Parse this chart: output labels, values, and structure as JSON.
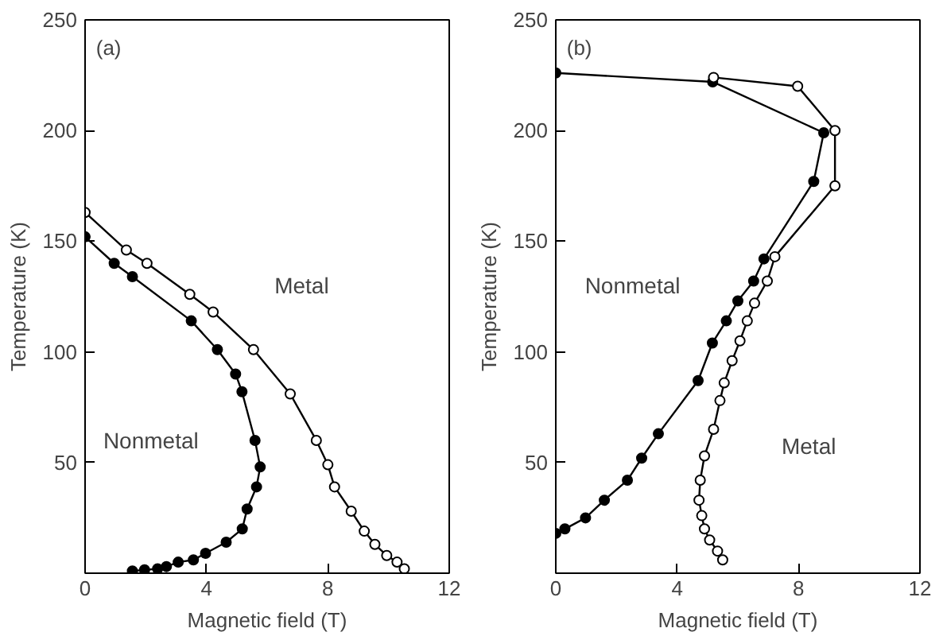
{
  "chart_data": [
    {
      "type": "line",
      "xlabel": "Magnetic field (T)",
      "ylabel": "Temperature (K)",
      "xlim": [
        0,
        12
      ],
      "ylim": [
        0,
        250
      ],
      "xticks": [
        0,
        4,
        8,
        12
      ],
      "yticks": [
        50,
        100,
        150,
        200,
        250
      ],
      "grid": false,
      "marker": "circle",
      "line_style": "solid",
      "annotations": [
        "(a)",
        "Metal",
        "Nonmetal"
      ],
      "series": [
        {
          "color": "#000000",
          "x": [
            0,
            0.96,
            1.56,
            3.5,
            4.36,
            4.96,
            5.17,
            5.6,
            5.77,
            5.65,
            5.34,
            5.18,
            4.65,
            3.97,
            3.57,
            3.07,
            2.68,
            2.39,
            1.96,
            1.56
          ],
          "values": [
            152,
            140,
            134,
            114,
            101,
            90,
            82,
            60,
            48,
            39,
            29,
            20,
            14,
            9,
            6,
            5,
            3,
            2,
            1.5,
            1
          ]
        },
        {
          "color": "#ffffff",
          "x": [
            0,
            1.36,
            2.04,
            3.45,
            4.22,
            5.55,
            6.76,
            7.62,
            8.0,
            8.22,
            8.77,
            9.2,
            9.55,
            9.94,
            10.28,
            10.52
          ],
          "values": [
            163,
            146,
            140,
            126,
            118,
            101,
            81,
            60,
            49,
            39,
            28,
            19,
            13,
            8,
            5,
            2
          ]
        }
      ]
    },
    {
      "type": "line",
      "xlabel": "Magnetic field (T)",
      "ylabel": "Temperature (K)",
      "xlim": [
        0,
        12
      ],
      "ylim": [
        0,
        250
      ],
      "xticks": [
        0,
        4,
        8,
        12
      ],
      "yticks": [
        50,
        100,
        150,
        200,
        250
      ],
      "grid": false,
      "marker": "circle",
      "line_style": "solid",
      "annotations": [
        "(b)",
        "Nonmetal",
        "Metal"
      ],
      "series": [
        {
          "color": "#000000",
          "x": [
            0,
            5.17,
            8.83,
            8.5,
            6.86,
            6.52,
            6.0,
            5.62,
            5.16,
            4.69,
            3.38,
            2.83,
            2.36,
            1.6,
            0.98,
            0.3,
            0
          ],
          "values": [
            226,
            222,
            199,
            177,
            142,
            132,
            123,
            114,
            104,
            87,
            63,
            52,
            42,
            33,
            25,
            20,
            18
          ]
        },
        {
          "color": "#ffffff",
          "x": [
            5.2,
            7.97,
            9.2,
            9.2,
            7.22,
            6.97,
            6.55,
            6.31,
            6.07,
            5.81,
            5.55,
            5.41,
            5.2,
            4.9,
            4.76,
            4.72,
            4.81,
            4.9,
            5.07,
            5.33,
            5.5
          ],
          "values": [
            224,
            220,
            200,
            175,
            143,
            132,
            122,
            114,
            105,
            96,
            86,
            78,
            65,
            53,
            42,
            33,
            26,
            20,
            15,
            10,
            6
          ]
        }
      ]
    }
  ]
}
